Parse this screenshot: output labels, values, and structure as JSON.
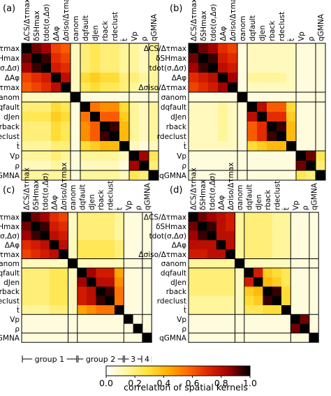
{
  "chart_data": [
    {
      "type": "heatmap",
      "panel_label": "(a)",
      "categories": [
        "ΔCS/Δτmax",
        "δSHmax",
        "tdot(σ,Δσ)",
        "ΔAφ",
        "Δσiso/Δτmax",
        "σanom",
        "dqfault",
        "dJen",
        "rback",
        "rdeclust",
        "ṫ",
        "Vp",
        "ρ",
        "qGMNA"
      ],
      "group_boundaries_after": [
        5,
        6,
        11,
        13
      ],
      "values": [
        [
          1.0,
          0.9,
          0.85,
          0.65,
          0.6,
          0.1,
          0.2,
          0.25,
          0.2,
          0.2,
          0.15,
          0.15,
          0.1,
          0.15
        ],
        [
          0.9,
          1.0,
          0.95,
          0.7,
          0.65,
          0.1,
          0.2,
          0.25,
          0.2,
          0.2,
          0.15,
          0.15,
          0.1,
          0.15
        ],
        [
          0.85,
          0.95,
          1.0,
          0.75,
          0.7,
          0.1,
          0.2,
          0.25,
          0.2,
          0.2,
          0.15,
          0.15,
          0.1,
          0.15
        ],
        [
          0.65,
          0.7,
          0.75,
          1.0,
          0.8,
          0.1,
          0.3,
          0.35,
          0.3,
          0.3,
          0.2,
          0.2,
          0.15,
          0.15
        ],
        [
          0.6,
          0.65,
          0.7,
          0.8,
          1.0,
          0.1,
          0.25,
          0.3,
          0.25,
          0.25,
          0.2,
          0.15,
          0.1,
          0.15
        ],
        [
          0.1,
          0.1,
          0.1,
          0.1,
          0.1,
          1.0,
          0.05,
          0.05,
          0.05,
          0.05,
          0.05,
          0.05,
          0.05,
          0.05
        ],
        [
          0.2,
          0.2,
          0.2,
          0.3,
          0.25,
          0.05,
          1.0,
          0.55,
          0.5,
          0.5,
          0.3,
          0.15,
          0.1,
          0.15
        ],
        [
          0.25,
          0.25,
          0.25,
          0.35,
          0.3,
          0.05,
          0.55,
          1.0,
          0.6,
          0.6,
          0.35,
          0.15,
          0.1,
          0.15
        ],
        [
          0.2,
          0.2,
          0.2,
          0.3,
          0.25,
          0.05,
          0.5,
          0.6,
          1.0,
          0.95,
          0.4,
          0.15,
          0.1,
          0.15
        ],
        [
          0.2,
          0.2,
          0.2,
          0.3,
          0.25,
          0.05,
          0.5,
          0.6,
          0.95,
          1.0,
          0.4,
          0.15,
          0.1,
          0.15
        ],
        [
          0.15,
          0.15,
          0.15,
          0.2,
          0.2,
          0.05,
          0.3,
          0.35,
          0.4,
          0.4,
          1.0,
          0.1,
          0.05,
          0.1
        ],
        [
          0.15,
          0.15,
          0.15,
          0.2,
          0.15,
          0.05,
          0.15,
          0.15,
          0.15,
          0.15,
          0.1,
          1.0,
          0.85,
          0.25
        ],
        [
          0.1,
          0.1,
          0.1,
          0.15,
          0.1,
          0.05,
          0.1,
          0.1,
          0.1,
          0.1,
          0.05,
          0.85,
          1.0,
          0.2
        ],
        [
          0.15,
          0.15,
          0.15,
          0.15,
          0.15,
          0.05,
          0.15,
          0.15,
          0.15,
          0.15,
          0.1,
          0.25,
          0.2,
          1.0
        ]
      ]
    },
    {
      "type": "heatmap",
      "panel_label": "(b)",
      "categories": [
        "ΔCS/Δτmax",
        "δSHmax",
        "tdot(σ,Δσ)",
        "ΔAφ",
        "Δσiso/Δτmax",
        "σanom",
        "dqfault",
        "dJen",
        "rback",
        "rdeclust",
        "ṫ",
        "Vp",
        "ρ",
        "qGMNA"
      ],
      "group_boundaries_after": [
        5,
        6,
        11,
        13
      ],
      "values": [
        [
          1.0,
          0.9,
          0.85,
          0.7,
          0.65,
          0.05,
          0.1,
          0.1,
          0.1,
          0.1,
          0.1,
          0.05,
          0.05,
          0.05
        ],
        [
          0.9,
          1.0,
          0.95,
          0.75,
          0.7,
          0.05,
          0.1,
          0.1,
          0.1,
          0.1,
          0.1,
          0.05,
          0.05,
          0.05
        ],
        [
          0.85,
          0.95,
          1.0,
          0.8,
          0.75,
          0.05,
          0.1,
          0.1,
          0.1,
          0.1,
          0.1,
          0.05,
          0.05,
          0.05
        ],
        [
          0.7,
          0.75,
          0.8,
          1.0,
          0.85,
          0.05,
          0.15,
          0.15,
          0.15,
          0.15,
          0.1,
          0.05,
          0.05,
          0.05
        ],
        [
          0.65,
          0.7,
          0.75,
          0.85,
          1.0,
          0.05,
          0.1,
          0.1,
          0.1,
          0.1,
          0.1,
          0.05,
          0.05,
          0.05
        ],
        [
          0.05,
          0.05,
          0.05,
          0.05,
          0.05,
          1.0,
          0.05,
          0.05,
          0.05,
          0.05,
          0.05,
          0.05,
          0.05,
          0.05
        ],
        [
          0.1,
          0.1,
          0.1,
          0.15,
          0.1,
          0.05,
          1.0,
          0.8,
          0.6,
          0.6,
          0.3,
          0.05,
          0.05,
          0.05
        ],
        [
          0.1,
          0.1,
          0.1,
          0.15,
          0.1,
          0.05,
          0.8,
          1.0,
          0.7,
          0.7,
          0.35,
          0.05,
          0.05,
          0.05
        ],
        [
          0.1,
          0.1,
          0.1,
          0.15,
          0.1,
          0.05,
          0.6,
          0.7,
          1.0,
          0.95,
          0.4,
          0.05,
          0.05,
          0.05
        ],
        [
          0.1,
          0.1,
          0.1,
          0.15,
          0.1,
          0.05,
          0.6,
          0.7,
          0.95,
          1.0,
          0.4,
          0.05,
          0.05,
          0.05
        ],
        [
          0.1,
          0.1,
          0.1,
          0.1,
          0.1,
          0.05,
          0.3,
          0.35,
          0.4,
          0.4,
          1.0,
          0.05,
          0.05,
          0.05
        ],
        [
          0.05,
          0.05,
          0.05,
          0.05,
          0.05,
          0.05,
          0.05,
          0.05,
          0.05,
          0.05,
          0.05,
          1.0,
          0.9,
          0.25
        ],
        [
          0.05,
          0.05,
          0.05,
          0.05,
          0.05,
          0.05,
          0.05,
          0.05,
          0.05,
          0.05,
          0.05,
          0.9,
          1.0,
          0.2
        ],
        [
          0.05,
          0.05,
          0.05,
          0.05,
          0.05,
          0.05,
          0.05,
          0.05,
          0.05,
          0.05,
          0.05,
          0.25,
          0.2,
          1.0
        ]
      ]
    },
    {
      "type": "heatmap",
      "panel_label": "(c)",
      "categories": [
        "ΔCS/Δτmax",
        "δSHmax",
        "tdot(σ,Δσ)",
        "ΔAφ",
        "Δσiso/Δτmax",
        "σanom",
        "dqfault",
        "dJen",
        "rback",
        "rdeclust",
        "ṫ",
        "Vp",
        "ρ",
        "qGMNA"
      ],
      "group_boundaries_after": [
        5,
        6,
        11,
        13
      ],
      "values": [
        [
          1.0,
          0.9,
          0.85,
          0.7,
          0.65,
          0.1,
          0.2,
          0.2,
          0.2,
          0.2,
          0.15,
          0.05,
          0.05,
          0.05
        ],
        [
          0.9,
          1.0,
          0.95,
          0.75,
          0.7,
          0.1,
          0.2,
          0.2,
          0.2,
          0.2,
          0.15,
          0.05,
          0.05,
          0.05
        ],
        [
          0.85,
          0.95,
          1.0,
          0.8,
          0.75,
          0.1,
          0.2,
          0.2,
          0.2,
          0.2,
          0.15,
          0.05,
          0.05,
          0.05
        ],
        [
          0.7,
          0.75,
          0.8,
          1.0,
          0.8,
          0.1,
          0.25,
          0.25,
          0.25,
          0.25,
          0.2,
          0.05,
          0.05,
          0.05
        ],
        [
          0.65,
          0.7,
          0.75,
          0.8,
          1.0,
          0.1,
          0.25,
          0.25,
          0.25,
          0.25,
          0.2,
          0.05,
          0.05,
          0.05
        ],
        [
          0.1,
          0.1,
          0.1,
          0.1,
          0.1,
          1.0,
          0.1,
          0.1,
          0.1,
          0.1,
          0.1,
          0.05,
          0.05,
          0.05
        ],
        [
          0.2,
          0.2,
          0.2,
          0.25,
          0.25,
          0.1,
          1.0,
          0.85,
          0.75,
          0.75,
          0.45,
          0.05,
          0.05,
          0.05
        ],
        [
          0.2,
          0.2,
          0.2,
          0.25,
          0.25,
          0.1,
          0.85,
          1.0,
          0.8,
          0.8,
          0.5,
          0.05,
          0.05,
          0.05
        ],
        [
          0.2,
          0.2,
          0.2,
          0.25,
          0.25,
          0.1,
          0.75,
          0.8,
          1.0,
          0.95,
          0.55,
          0.05,
          0.05,
          0.05
        ],
        [
          0.2,
          0.2,
          0.2,
          0.25,
          0.25,
          0.1,
          0.75,
          0.8,
          0.95,
          1.0,
          0.55,
          0.05,
          0.05,
          0.05
        ],
        [
          0.15,
          0.15,
          0.15,
          0.2,
          0.2,
          0.1,
          0.45,
          0.5,
          0.55,
          0.55,
          1.0,
          0.05,
          0.05,
          0.05
        ],
        [
          0.05,
          0.05,
          0.05,
          0.05,
          0.05,
          0.05,
          0.05,
          0.05,
          0.05,
          0.05,
          0.05,
          1.0,
          0.05,
          0.05
        ],
        [
          0.05,
          0.05,
          0.05,
          0.05,
          0.05,
          0.05,
          0.05,
          0.05,
          0.05,
          0.05,
          0.05,
          0.05,
          1.0,
          0.05
        ],
        [
          0.05,
          0.05,
          0.05,
          0.05,
          0.05,
          0.05,
          0.05,
          0.05,
          0.05,
          0.05,
          0.05,
          0.05,
          0.05,
          1.0
        ]
      ]
    },
    {
      "type": "heatmap",
      "panel_label": "(d)",
      "categories": [
        "ΔCS/Δτmax",
        "δSHmax",
        "tdot(σ,Δσ)",
        "ΔAφ",
        "Δσiso/Δτmax",
        "σanom",
        "dqfault",
        "dJen",
        "rback",
        "rdeclust",
        "ṫ",
        "Vp",
        "ρ",
        "qGMNA"
      ],
      "group_boundaries_after": [
        5,
        6,
        11,
        13
      ],
      "values": [
        [
          1.0,
          0.9,
          0.85,
          0.8,
          0.75,
          0.15,
          0.2,
          0.2,
          0.2,
          0.15,
          0.15,
          0.05,
          0.05,
          0.05
        ],
        [
          0.9,
          1.0,
          0.95,
          0.8,
          0.75,
          0.15,
          0.2,
          0.2,
          0.2,
          0.15,
          0.15,
          0.05,
          0.05,
          0.05
        ],
        [
          0.85,
          0.95,
          1.0,
          0.8,
          0.8,
          0.15,
          0.2,
          0.2,
          0.2,
          0.15,
          0.15,
          0.05,
          0.05,
          0.05
        ],
        [
          0.8,
          0.8,
          0.8,
          1.0,
          0.8,
          0.15,
          0.2,
          0.2,
          0.2,
          0.15,
          0.15,
          0.05,
          0.05,
          0.05
        ],
        [
          0.75,
          0.75,
          0.8,
          0.8,
          1.0,
          0.15,
          0.2,
          0.2,
          0.2,
          0.15,
          0.15,
          0.05,
          0.05,
          0.05
        ],
        [
          0.15,
          0.15,
          0.15,
          0.15,
          0.15,
          1.0,
          0.1,
          0.1,
          0.1,
          0.1,
          0.1,
          0.05,
          0.05,
          0.05
        ],
        [
          0.2,
          0.2,
          0.2,
          0.2,
          0.2,
          0.1,
          1.0,
          0.75,
          0.35,
          0.3,
          0.25,
          0.05,
          0.05,
          0.05
        ],
        [
          0.2,
          0.2,
          0.2,
          0.2,
          0.2,
          0.1,
          0.75,
          1.0,
          0.4,
          0.35,
          0.25,
          0.05,
          0.05,
          0.05
        ],
        [
          0.2,
          0.2,
          0.2,
          0.2,
          0.2,
          0.1,
          0.35,
          0.4,
          1.0,
          0.95,
          0.3,
          0.05,
          0.05,
          0.05
        ],
        [
          0.15,
          0.15,
          0.15,
          0.15,
          0.15,
          0.1,
          0.3,
          0.35,
          0.95,
          1.0,
          0.3,
          0.05,
          0.05,
          0.05
        ],
        [
          0.15,
          0.15,
          0.15,
          0.15,
          0.15,
          0.1,
          0.25,
          0.25,
          0.3,
          0.3,
          1.0,
          0.05,
          0.05,
          0.05
        ],
        [
          0.05,
          0.05,
          0.05,
          0.05,
          0.05,
          0.05,
          0.05,
          0.05,
          0.05,
          0.05,
          0.05,
          1.0,
          0.9,
          0.05
        ],
        [
          0.05,
          0.05,
          0.05,
          0.05,
          0.05,
          0.05,
          0.05,
          0.05,
          0.05,
          0.05,
          0.05,
          0.9,
          1.0,
          0.05
        ],
        [
          0.05,
          0.05,
          0.05,
          0.05,
          0.05,
          0.05,
          0.05,
          0.05,
          0.05,
          0.05,
          0.05,
          0.05,
          0.05,
          1.0
        ]
      ]
    }
  ],
  "groups": {
    "labels": [
      "group 1",
      "group 2",
      "3",
      "4"
    ],
    "ranges": [
      [
        0,
        6
      ],
      [
        6,
        11
      ],
      [
        11,
        13
      ],
      [
        13,
        14
      ]
    ]
  },
  "colorbar": {
    "label": "correlation of spatial kernels",
    "range": [
      0,
      1
    ],
    "ticks": [
      "0.0",
      "0.2",
      "0.4",
      "0.6",
      "0.8",
      "1.0"
    ],
    "colors": [
      "#ffffff",
      "#fff6a0",
      "#ffe23c",
      "#ffb000",
      "#ff6a00",
      "#e02400",
      "#a00000",
      "#000000"
    ]
  }
}
